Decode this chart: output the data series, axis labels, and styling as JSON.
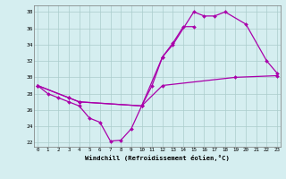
{
  "xlabel": "Windchill (Refroidissement éolien,°C)",
  "background_color": "#d5eef0",
  "grid_color": "#aacccc",
  "line_color": "#aa00aa",
  "x_ticks": [
    0,
    1,
    2,
    3,
    4,
    5,
    6,
    7,
    8,
    9,
    10,
    11,
    12,
    13,
    14,
    15,
    16,
    17,
    18,
    19,
    20,
    21,
    22,
    23
  ],
  "yticks": [
    22,
    24,
    26,
    28,
    30,
    32,
    34,
    36,
    38
  ],
  "ylim": [
    21.5,
    38.8
  ],
  "xlim": [
    -0.3,
    23.3
  ],
  "line1_x": [
    0,
    1,
    2,
    3,
    4,
    5,
    6,
    7,
    8,
    9,
    10,
    11,
    12,
    13,
    14,
    15
  ],
  "line1_y": [
    29.0,
    28.0,
    27.5,
    27.0,
    26.5,
    25.0,
    24.5,
    22.2,
    22.3,
    23.7,
    26.5,
    29.0,
    32.5,
    34.2,
    36.2,
    36.2
  ],
  "line2_x": [
    0,
    3,
    4,
    10,
    12,
    13,
    15,
    16,
    17,
    18,
    20,
    22,
    23
  ],
  "line2_y": [
    29.0,
    27.5,
    27.0,
    26.5,
    32.5,
    34.0,
    38.0,
    37.5,
    37.5,
    38.0,
    36.5,
    32.0,
    30.5
  ],
  "line3_x": [
    0,
    3,
    4,
    10,
    12,
    19,
    23
  ],
  "line3_y": [
    29.0,
    27.5,
    27.0,
    26.5,
    29.0,
    30.0,
    30.2
  ]
}
